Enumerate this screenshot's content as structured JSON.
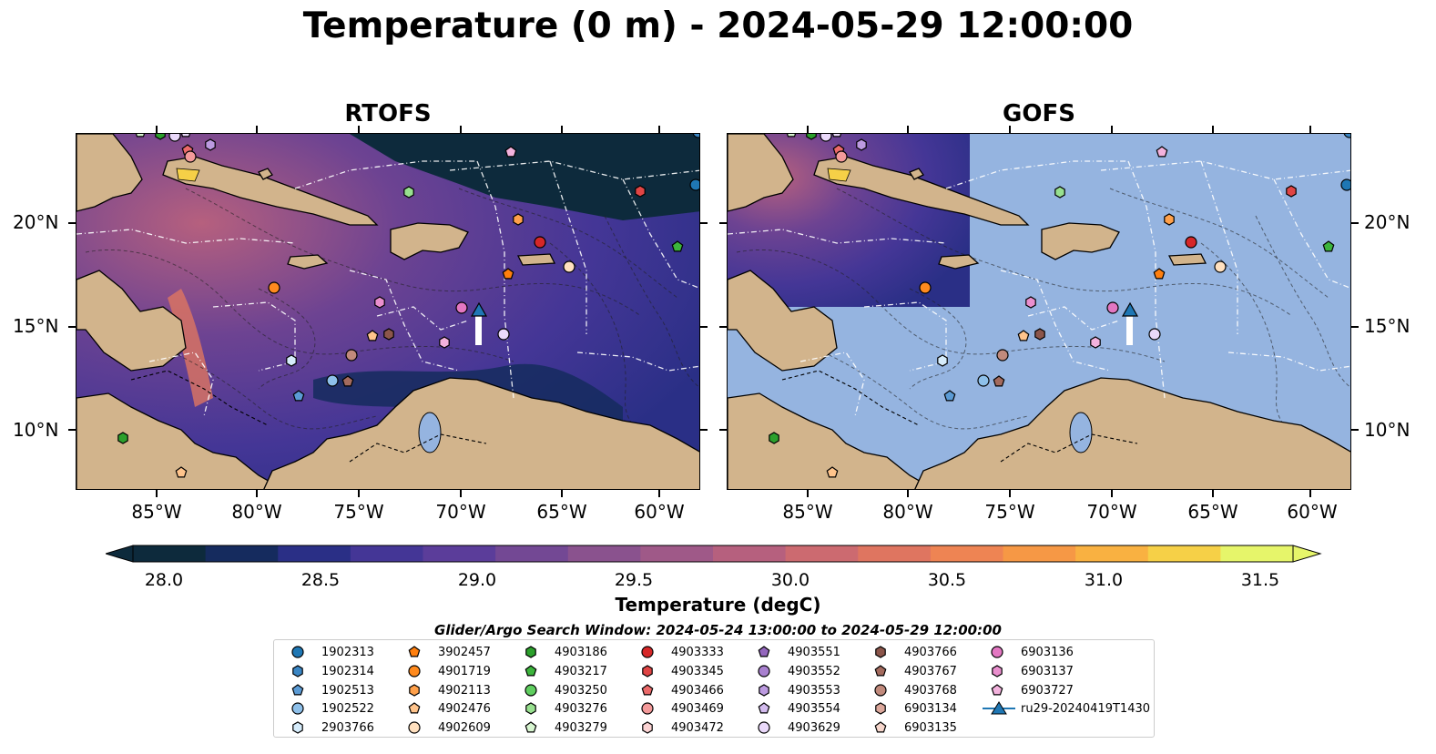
{
  "title": "Temperature (0 m) - 2024-05-29 12:00:00",
  "panels": [
    {
      "title": "RTOFS"
    },
    {
      "title": "GOFS"
    }
  ],
  "axes": {
    "x_ticks": [
      "85°W",
      "80°W",
      "75°W",
      "70°W",
      "65°W",
      "60°W"
    ],
    "y_ticks": [
      "20°N",
      "15°N",
      "10°N"
    ]
  },
  "colorbar": {
    "label": "Temperature (degC)",
    "ticks": [
      "28.0",
      "28.5",
      "29.0",
      "29.5",
      "30.0",
      "30.5",
      "31.0",
      "31.5"
    ],
    "colors": [
      "#0d2a3c",
      "#152b5e",
      "#2a2f86",
      "#443696",
      "#5b3d9a",
      "#734894",
      "#8a528e",
      "#9f5988",
      "#b6607e",
      "#cc6a70",
      "#df7560",
      "#ee8453",
      "#f69845",
      "#f9b141",
      "#f6d047",
      "#e6f56a"
    ]
  },
  "search_window": "Glider/Argo Search Window: 2024-05-24 13:00:00 to 2024-05-29 12:00:00",
  "legend": [
    {
      "id": "1902313",
      "shape": "circle",
      "color": "#1f77b4"
    },
    {
      "id": "1902314",
      "shape": "hexagon",
      "color": "#3a86c4"
    },
    {
      "id": "1902513",
      "shape": "pentagon",
      "color": "#5b9bd5"
    },
    {
      "id": "1902522",
      "shape": "circle",
      "color": "#8ec0ea"
    },
    {
      "id": "2903766",
      "shape": "hexagon",
      "color": "#d6ecfb"
    },
    {
      "id": "3902457",
      "shape": "pentagon",
      "color": "#ff7f0e"
    },
    {
      "id": "4901719",
      "shape": "circle",
      "color": "#ff8a1e"
    },
    {
      "id": "4902113",
      "shape": "hexagon",
      "color": "#ffa04a"
    },
    {
      "id": "4902476",
      "shape": "pentagon",
      "color": "#ffc48c"
    },
    {
      "id": "4902609",
      "shape": "circle",
      "color": "#ffe0bf"
    },
    {
      "id": "4903186",
      "shape": "hexagon",
      "color": "#2ca02c"
    },
    {
      "id": "4903217",
      "shape": "pentagon",
      "color": "#3cb43c"
    },
    {
      "id": "4903250",
      "shape": "circle",
      "color": "#5fce5f"
    },
    {
      "id": "4903276",
      "shape": "hexagon",
      "color": "#98e08f"
    },
    {
      "id": "4903279",
      "shape": "pentagon",
      "color": "#d7f5d0"
    },
    {
      "id": "4903333",
      "shape": "circle",
      "color": "#d62728"
    },
    {
      "id": "4903345",
      "shape": "hexagon",
      "color": "#e04545"
    },
    {
      "id": "4903466",
      "shape": "pentagon",
      "color": "#ec6a6a"
    },
    {
      "id": "4903469",
      "shape": "circle",
      "color": "#f49a9a"
    },
    {
      "id": "4903472",
      "shape": "hexagon",
      "color": "#fcd4d4"
    },
    {
      "id": "4903551",
      "shape": "pentagon",
      "color": "#9467bd"
    },
    {
      "id": "4903552",
      "shape": "circle",
      "color": "#a880cf"
    },
    {
      "id": "4903553",
      "shape": "hexagon",
      "color": "#bc9ae0"
    },
    {
      "id": "4903554",
      "shape": "pentagon",
      "color": "#d3bbee"
    },
    {
      "id": "4903629",
      "shape": "circle",
      "color": "#ead9fa"
    },
    {
      "id": "4903766",
      "shape": "hexagon",
      "color": "#8c564b"
    },
    {
      "id": "4903767",
      "shape": "pentagon",
      "color": "#a46b5e"
    },
    {
      "id": "4903768",
      "shape": "circle",
      "color": "#c18a7c"
    },
    {
      "id": "6903134",
      "shape": "hexagon",
      "color": "#dca89c"
    },
    {
      "id": "6903135",
      "shape": "pentagon",
      "color": "#f6d6cc"
    },
    {
      "id": "6903136",
      "shape": "circle",
      "color": "#e377c2"
    },
    {
      "id": "6903137",
      "shape": "hexagon",
      "color": "#ea8fce"
    },
    {
      "id": "6903727",
      "shape": "pentagon",
      "color": "#f3b2dd"
    },
    {
      "id": "ru29-20240419T1430",
      "shape": "triangle-line",
      "color": "#1f77b4"
    }
  ],
  "map_colors": {
    "land": "#d2b48c",
    "ocean_gofs": "#95b4e0",
    "border": "#000000"
  }
}
